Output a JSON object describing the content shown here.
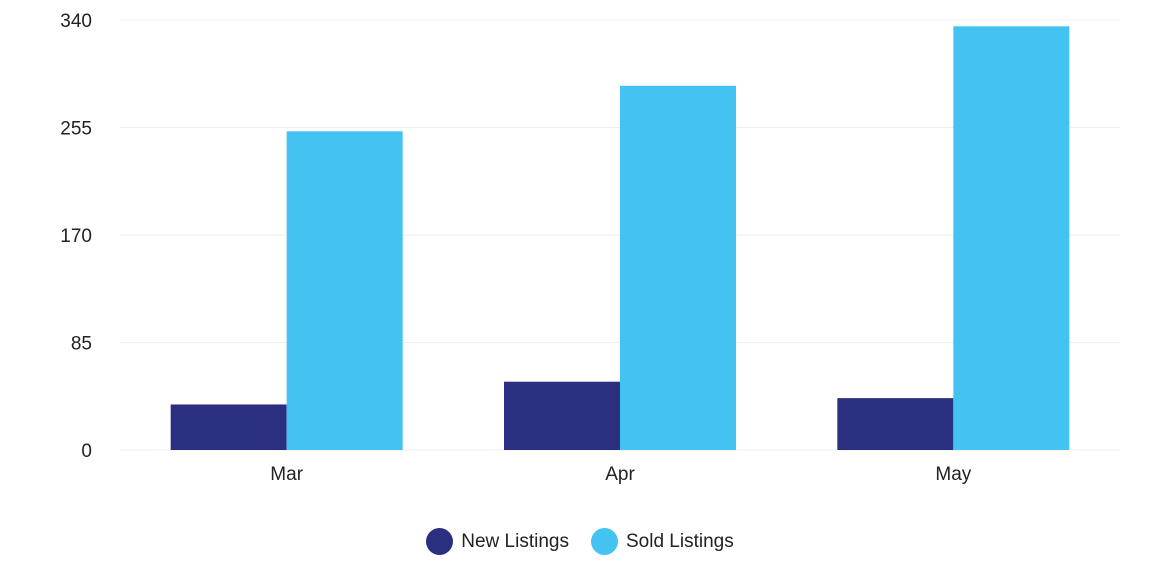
{
  "chart_data": {
    "type": "bar",
    "categories": [
      "Mar",
      "Apr",
      "May"
    ],
    "series": [
      {
        "name": "New Listings",
        "color": "#2a2f7f",
        "values": [
          36,
          54,
          41
        ]
      },
      {
        "name": "Sold Listings",
        "color": "#42c3f2",
        "values": [
          252,
          288,
          335
        ]
      }
    ],
    "ylim": [
      0,
      340
    ],
    "yticks": [
      "0",
      "85",
      "170",
      "255",
      "340"
    ],
    "grid": true,
    "legend_position": "bottom-center"
  }
}
